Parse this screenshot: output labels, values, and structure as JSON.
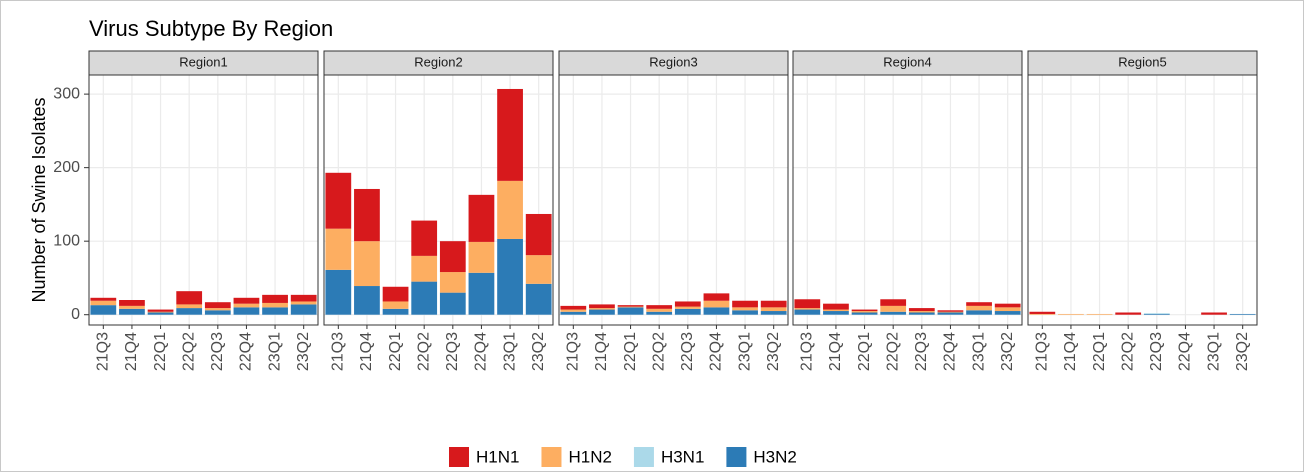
{
  "chart_data": {
    "type": "bar",
    "stacked": true,
    "title": "Virus Subtype By Region",
    "y_label": "Number of Swine Isolates",
    "categories": [
      "21Q3",
      "21Q4",
      "22Q1",
      "22Q2",
      "22Q3",
      "22Q4",
      "23Q1",
      "23Q2"
    ],
    "ylim": [
      -14,
      326
    ],
    "yticks": [
      0,
      100,
      200,
      300
    ],
    "grid": true,
    "legend": "bottom",
    "series_names": [
      "H1N1",
      "H1N2",
      "H3N1",
      "H3N2"
    ],
    "colors": [
      "#d7191c",
      "#fdae61",
      "#abd9e9",
      "#2c7bb6"
    ],
    "facets": [
      {
        "title": "Region1",
        "series": [
          {
            "values": [
              4,
              8,
              3,
              18,
              8,
              8,
              11,
              9
            ]
          },
          {
            "values": [
              6,
              4,
              1,
              5,
              3,
              5,
              6,
              4
            ]
          },
          {
            "values": [
              0,
              0,
              0,
              0,
              0,
              0,
              0,
              0
            ]
          },
          {
            "values": [
              13,
              8,
              3,
              9,
              6,
              10,
              10,
              14
            ]
          }
        ]
      },
      {
        "title": "Region2",
        "series": [
          {
            "values": [
              76,
              71,
              20,
              48,
              42,
              64,
              125,
              56
            ]
          },
          {
            "values": [
              56,
              61,
              10,
              35,
              28,
              42,
              79,
              39
            ]
          },
          {
            "values": [
              0,
              0,
              0,
              0,
              0,
              0,
              0,
              0
            ]
          },
          {
            "values": [
              61,
              39,
              8,
              45,
              30,
              57,
              103,
              42
            ]
          }
        ]
      },
      {
        "title": "Region3",
        "series": [
          {
            "values": [
              5,
              5,
              2,
              5,
              7,
              10,
              9,
              9
            ]
          },
          {
            "values": [
              3,
              2,
              1,
              4,
              3,
              9,
              4,
              5
            ]
          },
          {
            "values": [
              0,
              0,
              0,
              0,
              0,
              0,
              0,
              0
            ]
          },
          {
            "values": [
              4,
              7,
              10,
              4,
              8,
              10,
              6,
              5
            ]
          }
        ]
      },
      {
        "title": "Region4",
        "series": [
          {
            "values": [
              12,
              8,
              2,
              9,
              4,
              2,
              5,
              5
            ]
          },
          {
            "values": [
              2,
              2,
              2,
              8,
              2,
              1,
              6,
              5
            ]
          },
          {
            "values": [
              0,
              0,
              0,
              0,
              0,
              0,
              0,
              0
            ]
          },
          {
            "values": [
              7,
              5,
              3,
              4,
              3,
              3,
              6,
              5
            ]
          }
        ]
      },
      {
        "title": "Region5",
        "series": [
          {
            "values": [
              3,
              0,
              0,
              3,
              0,
              0,
              3,
              0
            ]
          },
          {
            "values": [
              1,
              1,
              1,
              0,
              0,
              0,
              0,
              0
            ]
          },
          {
            "values": [
              0,
              0,
              0,
              0,
              1,
              0,
              0,
              0
            ]
          },
          {
            "values": [
              0,
              0,
              0,
              0,
              1,
              0,
              0,
              1
            ]
          }
        ]
      }
    ]
  }
}
